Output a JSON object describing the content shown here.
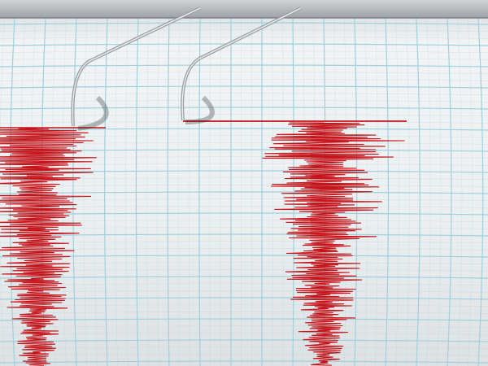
{
  "colors": {
    "paper": "#eef1f2",
    "grid": "#9fd0dc",
    "trace": "#c4141a",
    "needle": "#8a8f93",
    "rail": "#b9bec2"
  }
}
